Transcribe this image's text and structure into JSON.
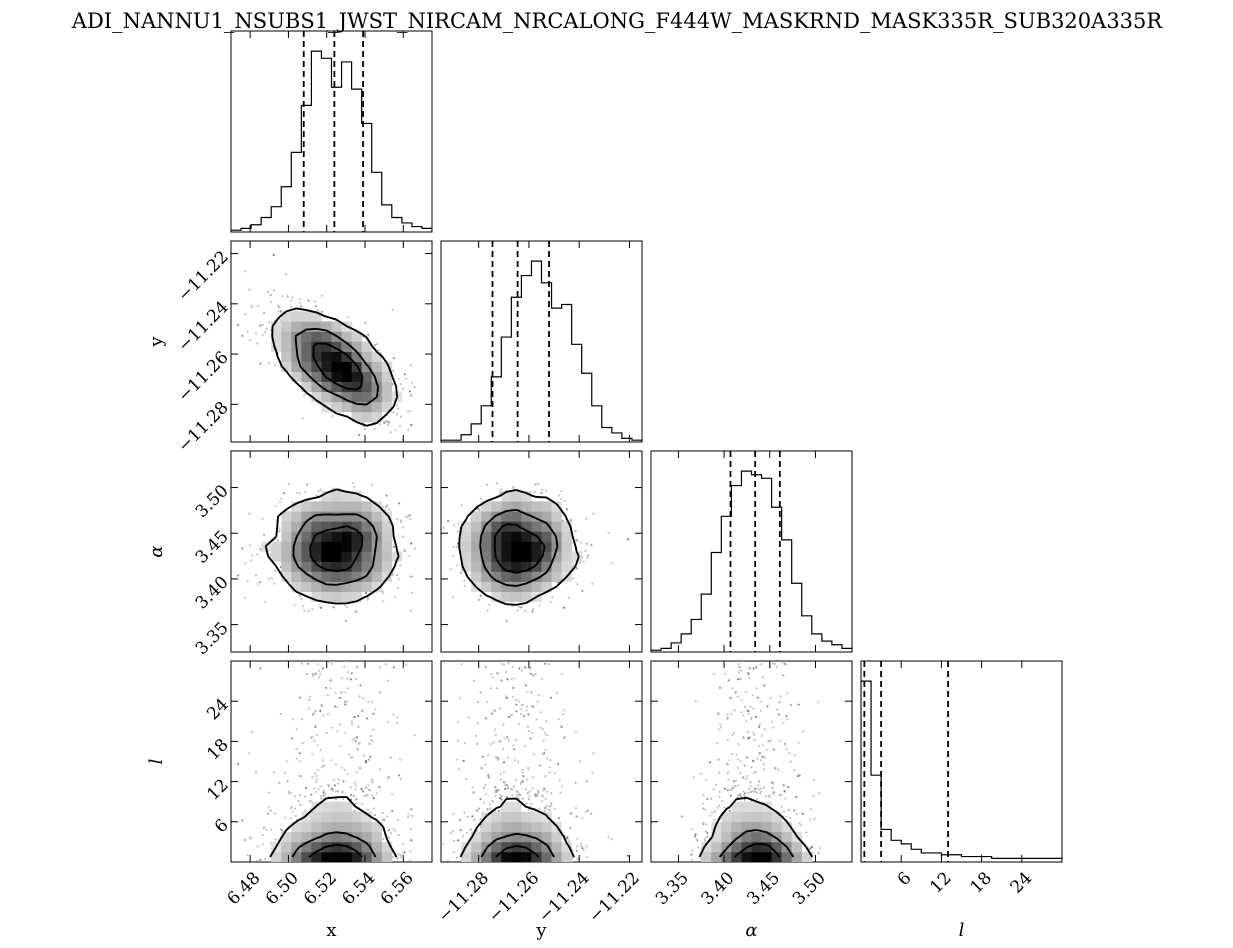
{
  "chart_data": {
    "type": "scatter",
    "subtype": "corner-plot",
    "title": "ADI_NANNU1_NSUBS1_JWST_NIRCAM_NRCALONG_F444W_MASKRND_MASK335R_SUB320A335R",
    "parameters": [
      {
        "label": "x",
        "range": [
          6.47,
          6.575
        ],
        "ticks": [
          6.48,
          6.5,
          6.52,
          6.54,
          6.56
        ],
        "tick_labels": [
          "6.48",
          "6.50",
          "6.52",
          "6.54",
          "6.56"
        ],
        "quantiles": [
          6.508,
          6.524,
          6.539
        ],
        "hist_counts": [
          1,
          2,
          4,
          8,
          14,
          25,
          44,
          70,
          100,
          96,
          80,
          94,
          79,
          60,
          33,
          15,
          8,
          5,
          3,
          2
        ]
      },
      {
        "label": "y",
        "range": [
          -11.295,
          -11.215
        ],
        "ticks": [
          -11.28,
          -11.26,
          -11.24,
          -11.22
        ],
        "tick_labels": [
          "−11.28",
          "−11.26",
          "−11.24",
          "−11.22"
        ],
        "quantiles": [
          -11.2745,
          -11.2645,
          -11.252
        ],
        "hist_counts": [
          1,
          1,
          4,
          10,
          20,
          36,
          58,
          80,
          92,
          100,
          88,
          74,
          76,
          54,
          38,
          20,
          8,
          5,
          2,
          1
        ]
      },
      {
        "label": "α",
        "range": [
          3.32,
          3.54
        ],
        "ticks": [
          3.35,
          3.4,
          3.45,
          3.5
        ],
        "tick_labels": [
          "3.35",
          "3.40",
          "3.45",
          "3.50"
        ],
        "quantiles": [
          3.407,
          3.434,
          3.461
        ],
        "hist_counts": [
          1,
          2,
          5,
          10,
          18,
          32,
          55,
          75,
          92,
          100,
          98,
          96,
          80,
          62,
          38,
          20,
          10,
          6,
          4,
          2
        ]
      },
      {
        "label": "l",
        "range": [
          0,
          30
        ],
        "ticks": [
          6,
          12,
          18,
          24
        ],
        "tick_labels": [
          "6",
          "12",
          "18",
          "24"
        ],
        "quantiles": [
          0.5,
          3.0,
          13.0
        ],
        "hist_counts": [
          100,
          48,
          18,
          12,
          10,
          7,
          5,
          5,
          4,
          4,
          3,
          3,
          3,
          2,
          2,
          2,
          2,
          2,
          2,
          2
        ]
      }
    ],
    "colors": {
      "line": "#000000",
      "density": "#000000",
      "background": "#ffffff"
    }
  }
}
